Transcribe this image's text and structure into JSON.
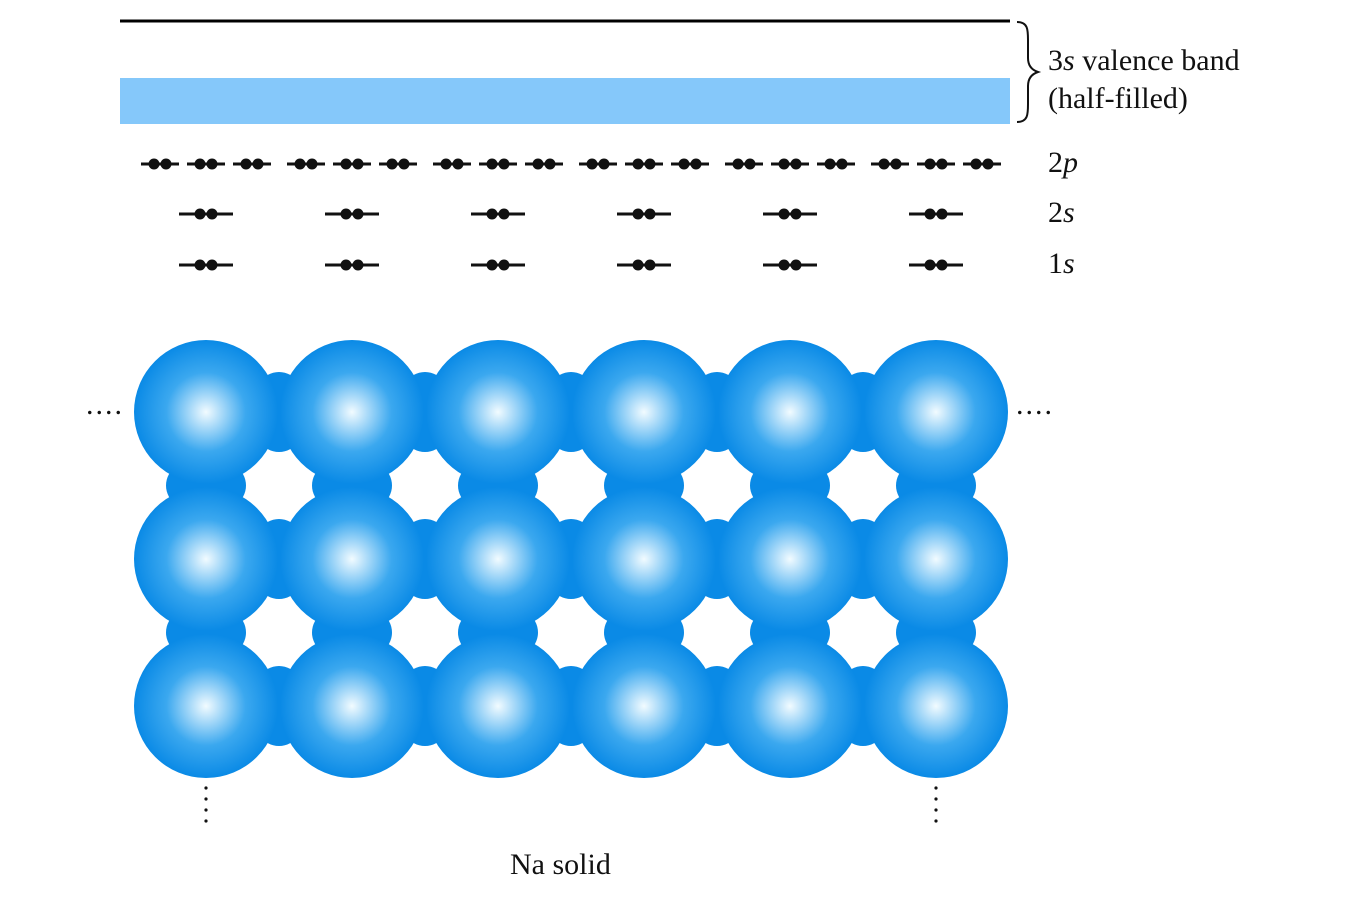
{
  "band_label": {
    "orbital": "3",
    "orbital_italic": "s",
    "line1_rest": " valence band",
    "line2": "(half-filled)"
  },
  "levels": [
    {
      "num": "2",
      "letter": "p",
      "electrons_per_atom": 6
    },
    {
      "num": "2",
      "letter": "s",
      "electrons_per_atom": 2
    },
    {
      "num": "1",
      "letter": "s",
      "electrons_per_atom": 2
    }
  ],
  "atoms": {
    "columns": 6,
    "rows": 3
  },
  "ellipsis": "....",
  "caption": "Na solid",
  "colors": {
    "band_fill": "#85c8fa",
    "band_line": "#000000",
    "sphere_center": "#f2fbff",
    "sphere_mid": "#3ba8ef",
    "sphere_edge": "#0a8ae6",
    "electron": "#111111"
  }
}
